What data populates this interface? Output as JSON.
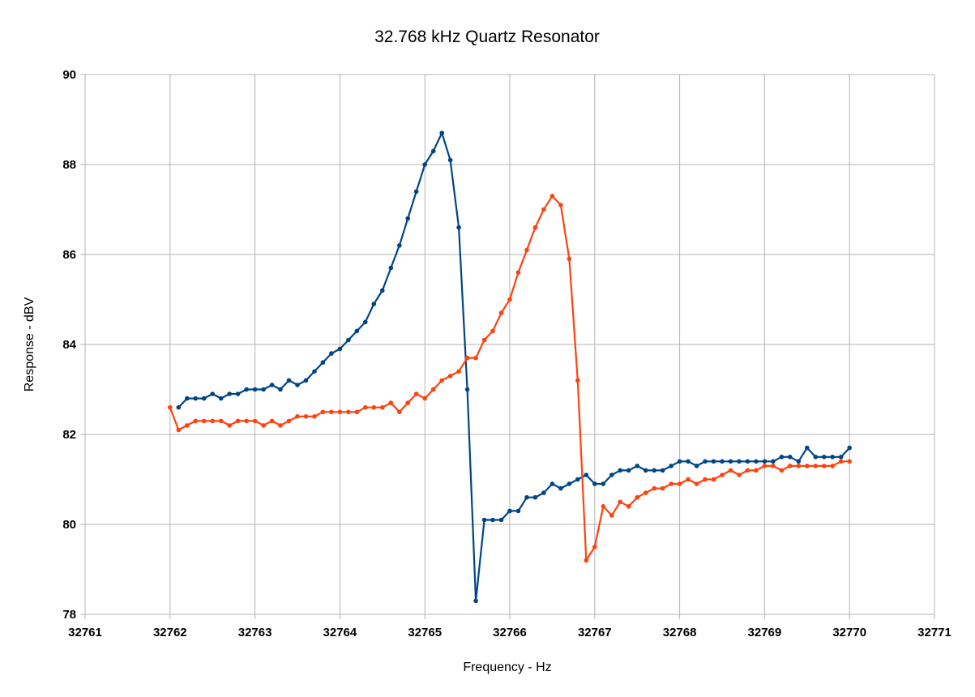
{
  "chart_data": {
    "type": "line",
    "title": "32.768 kHz Quartz Resonator",
    "xlabel": "Frequency - Hz",
    "ylabel": "Response - dBV",
    "xlim": [
      32761,
      32771
    ],
    "ylim": [
      78,
      90
    ],
    "xticks": [
      "32761",
      "32762",
      "32763",
      "32764",
      "32765",
      "32766",
      "32767",
      "32768",
      "32769",
      "32770",
      "32771"
    ],
    "yticks": [
      "78",
      "80",
      "82",
      "84",
      "86",
      "88",
      "90"
    ],
    "grid": true,
    "legend": "none",
    "series": [
      {
        "color": "#004586",
        "x_start": 32762.1,
        "x_step": 0.1,
        "values": [
          82.6,
          82.8,
          82.8,
          82.8,
          82.9,
          82.8,
          82.9,
          82.9,
          83.0,
          83.0,
          83.0,
          83.1,
          83.0,
          83.2,
          83.1,
          83.2,
          83.4,
          83.6,
          83.8,
          83.9,
          84.1,
          84.3,
          84.5,
          84.9,
          85.2,
          85.7,
          86.2,
          86.8,
          87.4,
          88.0,
          88.3,
          88.7,
          88.1,
          86.6,
          83.0,
          78.3,
          80.1,
          80.1,
          80.1,
          80.3,
          80.3,
          80.6,
          80.6,
          80.7,
          80.9,
          80.8,
          80.9,
          81.0,
          81.1,
          80.9,
          80.9,
          81.1,
          81.2,
          81.2,
          81.3,
          81.2,
          81.2,
          81.2,
          81.3,
          81.4,
          81.4,
          81.3,
          81.4,
          81.4,
          81.4,
          81.4,
          81.4,
          81.4,
          81.4,
          81.4,
          81.4,
          81.5,
          81.5,
          81.4,
          81.7,
          81.5,
          81.5,
          81.5,
          81.5,
          81.7
        ]
      },
      {
        "color": "#ff420e",
        "x_start": 32762.0,
        "x_step": 0.1,
        "values": [
          82.6,
          82.1,
          82.2,
          82.3,
          82.3,
          82.3,
          82.3,
          82.2,
          82.3,
          82.3,
          82.3,
          82.2,
          82.3,
          82.2,
          82.3,
          82.4,
          82.4,
          82.4,
          82.5,
          82.5,
          82.5,
          82.5,
          82.5,
          82.6,
          82.6,
          82.6,
          82.7,
          82.5,
          82.7,
          82.9,
          82.8,
          83.0,
          83.2,
          83.3,
          83.4,
          83.7,
          83.7,
          84.1,
          84.3,
          84.7,
          85.0,
          85.6,
          86.1,
          86.6,
          87.0,
          87.3,
          87.1,
          85.9,
          83.2,
          79.2,
          79.5,
          80.4,
          80.2,
          80.5,
          80.4,
          80.6,
          80.7,
          80.8,
          80.8,
          80.9,
          80.9,
          81.0,
          80.9,
          81.0,
          81.0,
          81.1,
          81.2,
          81.1,
          81.2,
          81.2,
          81.3,
          81.3,
          81.2,
          81.3,
          81.3,
          81.3,
          81.3,
          81.3,
          81.3,
          81.4,
          81.4
        ]
      }
    ]
  }
}
